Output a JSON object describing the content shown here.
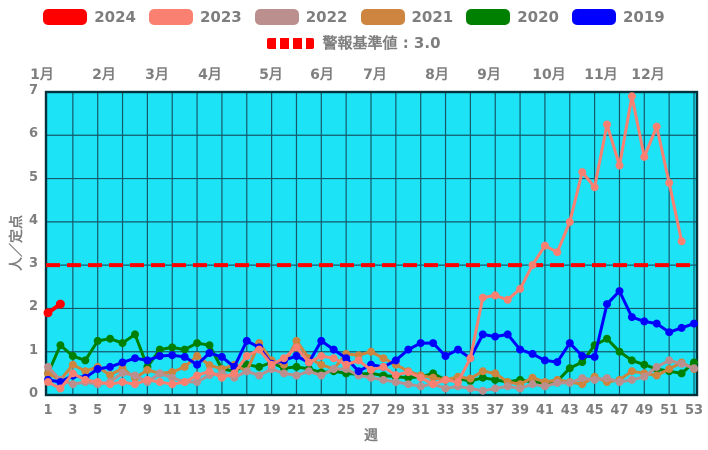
{
  "chart_data": {
    "type": "line",
    "xlabel": "週",
    "ylabel": "人／定点",
    "ylim": [
      0,
      7
    ],
    "grid": true,
    "plot_bg": "#1ce3f6",
    "grid_color": "#14596b",
    "border_color": "#04323c",
    "text_color": "#7e7e7e",
    "y_ticks": [
      0,
      1,
      2,
      3,
      4,
      5,
      6,
      7
    ],
    "x_ticks": [
      1,
      3,
      5,
      7,
      9,
      11,
      13,
      15,
      17,
      19,
      21,
      23,
      25,
      27,
      29,
      31,
      33,
      35,
      37,
      39,
      41,
      43,
      45,
      47,
      49,
      51,
      53
    ],
    "month_labels": [
      "1月",
      "2月",
      "3月",
      "4月",
      "5月",
      "6月",
      "7月",
      "8月",
      "9月",
      "10月",
      "11月",
      "12月"
    ],
    "threshold": {
      "label": "警報基準値 : 3.0",
      "value": 3.0,
      "color": "#ff0000"
    },
    "legend_order": [
      "2024",
      "2023",
      "2022",
      "2021",
      "2020",
      "2019"
    ],
    "draw_order": [
      4,
      3,
      2,
      5,
      1,
      0
    ],
    "series": [
      {
        "name": "2024",
        "color": "#ff0000",
        "start_week": 1,
        "values": [
          1.9,
          2.1
        ]
      },
      {
        "name": "2023",
        "color": "#fa8072",
        "start_week": 1,
        "values": [
          0.3,
          0.15,
          0.5,
          0.35,
          0.3,
          0.25,
          0.3,
          0.25,
          0.35,
          0.3,
          0.25,
          0.3,
          0.45,
          0.55,
          0.4,
          0.5,
          0.9,
          1.05,
          0.7,
          0.85,
          1.1,
          0.75,
          0.9,
          0.85,
          0.7,
          0.8,
          0.58,
          0.65,
          0.46,
          0.53,
          0.4,
          0.25,
          0.35,
          0.3,
          0.85,
          2.25,
          2.3,
          2.2,
          2.45,
          3.0,
          3.45,
          3.3,
          4.0,
          5.15,
          4.8,
          6.25,
          5.3,
          6.9,
          5.5,
          6.2,
          4.9,
          3.55
        ]
      },
      {
        "name": "2022",
        "color": "#bc8f8f",
        "start_week": 1,
        "values": [
          0.65,
          0.35,
          0.25,
          0.3,
          0.25,
          0.3,
          0.51,
          0.45,
          0.3,
          0.5,
          0.4,
          0.3,
          0.3,
          0.46,
          0.5,
          0.4,
          0.55,
          0.45,
          0.6,
          0.5,
          0.45,
          0.55,
          0.45,
          0.6,
          0.6,
          0.45,
          0.4,
          0.35,
          0.3,
          0.25,
          0.2,
          0.25,
          0.15,
          0.2,
          0.15,
          0.1,
          0.15,
          0.2,
          0.15,
          0.25,
          0.2,
          0.28,
          0.28,
          0.39,
          0.35,
          0.39,
          0.3,
          0.35,
          0.42,
          0.65,
          0.8,
          0.72,
          0.62
        ]
      },
      {
        "name": "2021",
        "color": "#cd853f",
        "start_week": 1,
        "values": [
          0.5,
          0.35,
          0.7,
          0.55,
          0.65,
          0.46,
          0.62,
          0.39,
          0.58,
          0.5,
          0.53,
          0.65,
          0.9,
          0.69,
          0.6,
          0.7,
          0.55,
          1.2,
          0.8,
          0.7,
          1.25,
          0.85,
          0.7,
          0.6,
          0.95,
          0.92,
          1.0,
          0.85,
          0.7,
          0.55,
          0.45,
          0.4,
          0.35,
          0.42,
          0.38,
          0.55,
          0.5,
          0.3,
          0.25,
          0.4,
          0.3,
          0.35,
          0.3,
          0.25,
          0.42,
          0.3,
          0.35,
          0.55,
          0.5,
          0.45,
          0.6,
          0.75,
          0.6
        ]
      },
      {
        "name": "2020",
        "color": "#008000",
        "start_week": 1,
        "values": [
          0.5,
          1.15,
          0.9,
          0.8,
          1.25,
          1.3,
          1.2,
          1.4,
          0.65,
          1.05,
          1.1,
          1.05,
          1.2,
          1.15,
          0.6,
          0.55,
          0.7,
          0.65,
          0.75,
          0.62,
          0.65,
          0.6,
          0.52,
          0.55,
          0.5,
          0.48,
          0.5,
          0.45,
          0.42,
          0.4,
          0.42,
          0.5,
          0.35,
          0.38,
          0.32,
          0.4,
          0.35,
          0.3,
          0.35,
          0.3,
          0.28,
          0.32,
          0.62,
          0.76,
          1.15,
          1.3,
          1.0,
          0.8,
          0.7,
          0.6,
          0.55,
          0.5,
          0.75
        ]
      },
      {
        "name": "2019",
        "color": "#0000ff",
        "start_week": 1,
        "values": [
          0.35,
          0.3,
          0.45,
          0.4,
          0.6,
          0.65,
          0.75,
          0.85,
          0.8,
          0.9,
          0.92,
          0.88,
          0.7,
          0.97,
          0.88,
          0.65,
          1.25,
          1.1,
          0.72,
          0.8,
          0.9,
          0.75,
          1.25,
          1.05,
          0.85,
          0.55,
          0.7,
          0.65,
          0.8,
          1.05,
          1.2,
          1.2,
          0.9,
          1.05,
          0.85,
          1.4,
          1.35,
          1.4,
          1.05,
          0.95,
          0.8,
          0.76,
          1.2,
          0.9,
          0.88,
          2.1,
          2.4,
          1.8,
          1.7,
          1.65,
          1.45,
          1.55,
          1.65
        ]
      }
    ]
  }
}
